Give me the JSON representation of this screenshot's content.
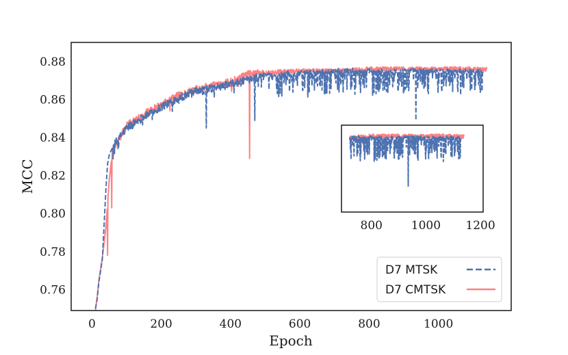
{
  "chart_data": {
    "type": "line",
    "title": "",
    "xlabel": "Epoch",
    "ylabel": "MCC",
    "xlim": [
      -60,
      1210
    ],
    "ylim": [
      0.749,
      0.89
    ],
    "x_ticks": [
      0,
      200,
      400,
      600,
      800,
      1000
    ],
    "x_tick_labels": [
      "0",
      "200",
      "400",
      "600",
      "800",
      "1000"
    ],
    "y_ticks": [
      0.76,
      0.78,
      0.8,
      0.82,
      0.84,
      0.86,
      0.88
    ],
    "y_tick_labels": [
      "0.76",
      "0.78",
      "0.80",
      "0.82",
      "0.84",
      "0.86",
      "0.88"
    ],
    "legend_position": "lower-right",
    "grid": false,
    "series": [
      {
        "name": "D7 MTSK",
        "color": "#4c72b0",
        "style": "dashed",
        "base_curve": {
          "x": [
            10,
            15,
            20,
            30,
            40,
            45,
            50,
            60,
            80,
            100,
            150,
            200,
            250,
            300,
            350,
            400,
            450,
            480,
            500,
            600,
            700,
            800,
            900,
            1000,
            1100,
            1130
          ],
          "y": [
            0.75,
            0.755,
            0.764,
            0.776,
            0.812,
            0.826,
            0.831,
            0.835,
            0.84,
            0.845,
            0.851,
            0.856,
            0.861,
            0.864,
            0.866,
            0.868,
            0.87,
            0.872,
            0.873,
            0.874,
            0.875,
            0.875,
            0.875,
            0.875,
            0.875,
            0.875
          ]
        },
        "notable_dips": [
          {
            "x": 330,
            "y": 0.845
          },
          {
            "x": 470,
            "y": 0.849
          },
          {
            "x": 935,
            "y": 0.849
          },
          {
            "x": 1120,
            "y": 0.864
          }
        ]
      },
      {
        "name": "D7 CMTSK",
        "color": "#ff6b6b",
        "style": "solid",
        "base_curve": {
          "x": [
            10,
            15,
            20,
            30,
            40,
            45,
            50,
            60,
            80,
            100,
            150,
            200,
            250,
            300,
            350,
            400,
            440,
            450,
            480,
            500,
            600,
            700,
            800,
            900,
            1000,
            1100,
            1140
          ],
          "y": [
            0.749,
            0.756,
            0.765,
            0.777,
            0.792,
            0.805,
            0.818,
            0.834,
            0.84,
            0.846,
            0.852,
            0.857,
            0.862,
            0.865,
            0.867,
            0.869,
            0.872,
            0.873,
            0.874,
            0.874,
            0.875,
            0.875,
            0.876,
            0.876,
            0.876,
            0.876,
            0.876
          ]
        },
        "notable_dips": [
          {
            "x": 45,
            "y": 0.778
          },
          {
            "x": 57,
            "y": 0.803
          },
          {
            "x": 455,
            "y": 0.829
          }
        ]
      }
    ],
    "inset": {
      "x_ticks": [
        800,
        1000,
        1200
      ],
      "x_tick_labels": [
        "800",
        "1000",
        "1200"
      ],
      "xlim": [
        690,
        1210
      ],
      "ylim": [
        0.835,
        0.882
      ]
    }
  }
}
